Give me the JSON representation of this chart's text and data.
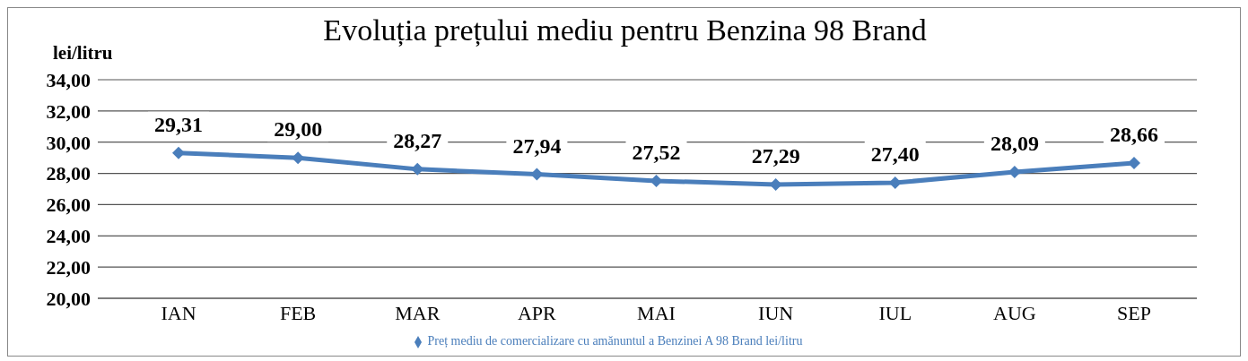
{
  "chart_data": {
    "type": "line",
    "title": "Evoluția prețului mediu pentru Benzina 98 Brand",
    "ylabel": "lei/litru",
    "categories": [
      "IAN",
      "FEB",
      "MAR",
      "APR",
      "MAI",
      "IUN",
      "IUL",
      "AUG",
      "SEP"
    ],
    "series": [
      {
        "name": "Preț mediu de comercializare cu amănuntul a Benzinei A 98 Brand lei/litru",
        "color": "#4a7ebb",
        "values": [
          29.31,
          29.0,
          28.27,
          27.94,
          27.52,
          27.29,
          27.4,
          28.09,
          28.66
        ],
        "value_labels": [
          "29,31",
          "29,00",
          "28,27",
          "27,94",
          "27,52",
          "27,29",
          "27,40",
          "28,09",
          "28,66"
        ]
      }
    ],
    "ylim": [
      20,
      34
    ],
    "yticks": [
      {
        "value": 20,
        "label": "20,00"
      },
      {
        "value": 22,
        "label": "22,00"
      },
      {
        "value": 24,
        "label": "24,00"
      },
      {
        "value": 26,
        "label": "26,00"
      },
      {
        "value": 28,
        "label": "28,00"
      },
      {
        "value": 30,
        "label": "30,00"
      },
      {
        "value": 32,
        "label": "32,00"
      },
      {
        "value": 34,
        "label": "34,00"
      }
    ],
    "grid": "y",
    "legend": "bottom",
    "marker": "diamond",
    "line_style": "solid"
  }
}
